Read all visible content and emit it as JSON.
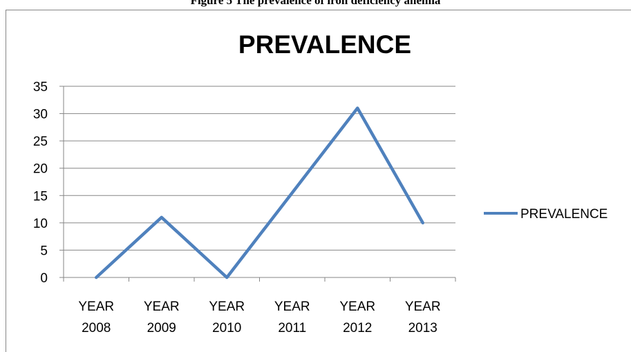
{
  "figure_caption": "Figure 5 The prevalence of iron deficiency anemia",
  "chart_data": {
    "type": "line",
    "title": "PREVALENCE",
    "categories": [
      [
        "YEAR",
        "2008"
      ],
      [
        "YEAR",
        "2009"
      ],
      [
        "YEAR",
        "2010"
      ],
      [
        "YEAR",
        "2011"
      ],
      [
        "YEAR",
        "2012"
      ],
      [
        "YEAR",
        "2013"
      ]
    ],
    "series": [
      {
        "name": "PREVALENCE",
        "values": [
          0,
          11,
          0,
          15.5,
          31,
          10
        ],
        "color": "#4F81BD"
      }
    ],
    "ylim": [
      0,
      35
    ],
    "yticks": [
      0,
      5,
      10,
      15,
      20,
      25,
      30,
      35
    ],
    "grid": true,
    "legend": "right"
  }
}
